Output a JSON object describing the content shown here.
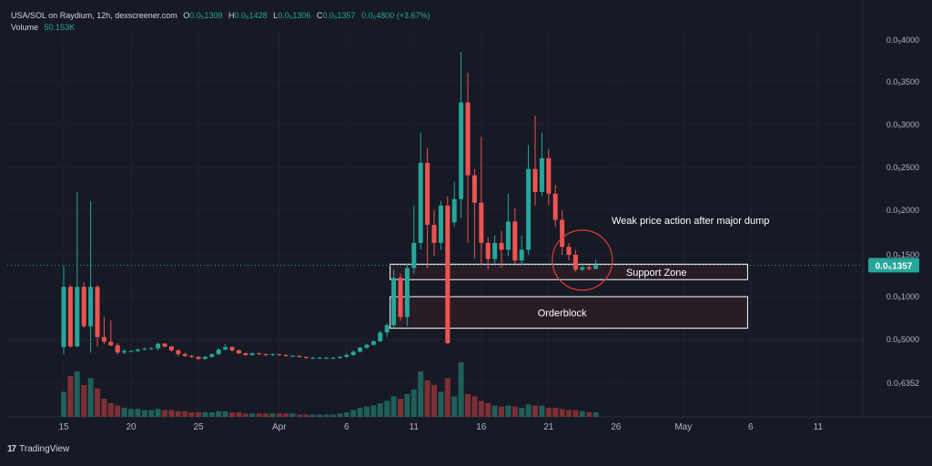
{
  "legend": {
    "symbol": "USA/SOL on Raydium, 12h, dexscreener.com",
    "o_label": "O",
    "o_value": "0.0₅1309",
    "h_label": "H",
    "h_value": "0.0₅1428",
    "l_label": "L",
    "l_value": "0.0₅1306",
    "c_label": "C",
    "c_value": "0.0₅1357",
    "change": "0.0₆4800 (+3.67%)",
    "volume_label": "Volume",
    "volume_value": "50.153K"
  },
  "footer": {
    "brand": "TradingView",
    "logo_glyph": "17"
  },
  "colors": {
    "background": "#161a25",
    "up": "#26a69a",
    "down": "#ef5350",
    "up_volume": "#1f5f59",
    "down_volume": "#7e2f35",
    "zone_fill": "#2c1f28",
    "annotation_line": "#ffffff",
    "circle": "#e53935",
    "axis_text": "#b2b5be",
    "grid": "#1e222d"
  },
  "chart_data": {
    "type": "candlestick",
    "title": "USA/SOL on Raydium, 12h, dexscreener.com",
    "price_axis": {
      "scale": "log",
      "tick_labels": [
        "0.0₅4000",
        "0.0₅3500",
        "0.0₅3000",
        "0.0₅2500",
        "0.0₅2000",
        "0.0₅1500",
        "0.0₅1000",
        "0.0₆5000",
        "0.0₇6352"
      ],
      "tick_values": [
        4e-06,
        3.5e-06,
        3e-06,
        2.5e-06,
        2e-06,
        1.5e-06,
        1e-06,
        5e-07,
        6.352e-08
      ],
      "current_price_label": "0.0₅1357",
      "current_price": 1.357e-06
    },
    "time_axis": {
      "tick_labels": [
        "15",
        "20",
        "25",
        "Apr",
        "6",
        "11",
        "16",
        "21",
        "26",
        "May",
        "6",
        "11"
      ],
      "tick_bar_index": [
        0,
        10,
        20,
        32,
        42,
        52,
        62,
        72,
        82,
        92,
        102,
        112
      ]
    },
    "candles": [
      [
        3.5e-07,
        1.1e-06,
        2.5e-07,
        1.35e-06,
        22
      ],
      [
        1.1e-06,
        3.6e-07,
        3.4e-07,
        1.12e-06,
        36
      ],
      [
        3.6e-07,
        1.1e-06,
        3.5e-07,
        2.2e-06,
        40
      ],
      [
        1.1e-06,
        6.2e-07,
        6e-07,
        1.15e-06,
        28
      ],
      [
        6.2e-07,
        1.1e-06,
        2.7e-07,
        2.1e-06,
        34
      ],
      [
        1.1e-06,
        5.2e-07,
        3.6e-07,
        1.12e-06,
        25
      ],
      [
        5.2e-07,
        4.5e-07,
        4e-07,
        7.2e-07,
        16
      ],
      [
        4.5e-07,
        3.8e-07,
        3.6e-07,
        6.8e-07,
        12
      ],
      [
        3.8e-07,
        2.7e-07,
        2.5e-07,
        4.2e-07,
        10
      ],
      [
        2.7e-07,
        2.9e-07,
        2.5e-07,
        3.2e-07,
        8
      ],
      [
        2.9e-07,
        2.9e-07,
        2.8e-07,
        3e-07,
        7
      ],
      [
        2.9e-07,
        3.1e-07,
        2.8e-07,
        3.3e-07,
        7
      ],
      [
        3.1e-07,
        3.2e-07,
        3e-07,
        3.5e-07,
        6
      ],
      [
        3.2e-07,
        3.3e-07,
        3.1e-07,
        3.5e-07,
        6
      ],
      [
        3.3e-07,
        4.1e-07,
        3e-07,
        4.3e-07,
        7
      ],
      [
        4.1e-07,
        3.6e-07,
        3.4e-07,
        4.2e-07,
        6
      ],
      [
        3.6e-07,
        3e-07,
        2.8e-07,
        3.7e-07,
        6
      ],
      [
        3e-07,
        2.5e-07,
        2.3e-07,
        3.1e-07,
        5
      ],
      [
        2.5e-07,
        2.3e-07,
        2.2e-07,
        2.7e-07,
        5
      ],
      [
        2.3e-07,
        2.2e-07,
        2.1e-07,
        2.4e-07,
        4
      ],
      [
        2.2e-07,
        2e-07,
        1.9e-07,
        2.3e-07,
        4
      ],
      [
        2e-07,
        2.2e-07,
        1.95e-07,
        2.3e-07,
        4
      ],
      [
        2.2e-07,
        2.5e-07,
        2.1e-07,
        2.6e-07,
        4
      ],
      [
        2.5e-07,
        3.1e-07,
        2.4e-07,
        3.3e-07,
        5
      ],
      [
        3.1e-07,
        3.5e-07,
        3e-07,
        4e-07,
        5
      ],
      [
        3.5e-07,
        3e-07,
        2.8e-07,
        3.6e-07,
        4
      ],
      [
        3e-07,
        2.6e-07,
        2.5e-07,
        3.1e-07,
        4
      ],
      [
        2.6e-07,
        2.4e-07,
        2.3e-07,
        2.7e-07,
        3
      ],
      [
        2.4e-07,
        2.6e-07,
        2.3e-07,
        2.7e-07,
        3
      ],
      [
        2.6e-07,
        2.5e-07,
        2.4e-07,
        2.7e-07,
        3
      ],
      [
        2.5e-07,
        2.4e-07,
        2.3e-07,
        2.6e-07,
        3
      ],
      [
        2.4e-07,
        2.5e-07,
        2.3e-07,
        2.6e-07,
        3
      ],
      [
        2.5e-07,
        2.4e-07,
        2.3e-07,
        2.5e-07,
        3
      ],
      [
        2.4e-07,
        2.3e-07,
        2.2e-07,
        2.5e-07,
        3
      ],
      [
        2.3e-07,
        2.3e-07,
        2.2e-07,
        2.4e-07,
        3
      ],
      [
        2.3e-07,
        2.2e-07,
        2.1e-07,
        2.4e-07,
        2
      ],
      [
        2.2e-07,
        2.1e-07,
        2e-07,
        2.2e-07,
        2
      ],
      [
        2.1e-07,
        2.1e-07,
        2e-07,
        2.2e-07,
        2
      ],
      [
        2.1e-07,
        2.1e-07,
        2e-07,
        2.2e-07,
        2
      ],
      [
        2.1e-07,
        2.1e-07,
        2e-07,
        2.2e-07,
        2
      ],
      [
        2.1e-07,
        2.1e-07,
        2e-07,
        2.2e-07,
        2
      ],
      [
        2.1e-07,
        2.2e-07,
        2e-07,
        2.3e-07,
        3
      ],
      [
        2.2e-07,
        2.4e-07,
        2.1e-07,
        2.6e-07,
        4
      ],
      [
        2.4e-07,
        2.8e-07,
        2.3e-07,
        3e-07,
        6
      ],
      [
        2.8e-07,
        3.4e-07,
        2.7e-07,
        3.6e-07,
        8
      ],
      [
        3.4e-07,
        3.9e-07,
        3.2e-07,
        4.1e-07,
        9
      ],
      [
        3.9e-07,
        4.6e-07,
        3.8e-07,
        4.8e-07,
        10
      ],
      [
        4.6e-07,
        5.6e-07,
        4.4e-07,
        5.8e-07,
        12
      ],
      [
        5.6e-07,
        6.3e-07,
        5.2e-07,
        6.5e-07,
        14
      ],
      [
        6.3e-07,
        1.2e-06,
        6e-07,
        1.3e-06,
        18
      ],
      [
        1.2e-06,
        7.2e-07,
        6.8e-07,
        1.25e-06,
        16
      ],
      [
        7.2e-07,
        1.32e-06,
        6.2e-07,
        1.38e-06,
        20
      ],
      [
        1.32e-06,
        1.62e-06,
        1.25e-06,
        2.05e-06,
        24
      ],
      [
        1.62e-06,
        2.55e-06,
        1.55e-06,
        2.9e-06,
        40
      ],
      [
        2.55e-06,
        1.82e-06,
        1.32e-06,
        2.72e-06,
        32
      ],
      [
        1.82e-06,
        1.62e-06,
        1.48e-06,
        2e-06,
        28
      ],
      [
        1.62e-06,
        2.05e-06,
        1.55e-06,
        2.1e-06,
        22
      ],
      [
        2.05e-06,
        4.2e-07,
        4e-07,
        2.15e-06,
        34
      ],
      [
        1.85e-06,
        2.12e-06,
        1.8e-06,
        2.32e-06,
        18
      ],
      [
        2.12e-06,
        3.25e-06,
        1.9e-06,
        3.85e-06,
        48
      ],
      [
        3.25e-06,
        2.4e-06,
        1.62e-06,
        3.6e-06,
        20
      ],
      [
        2.4e-06,
        2.08e-06,
        1.45e-06,
        2.48e-06,
        18
      ],
      [
        2.08e-06,
        1.62e-06,
        1.36e-06,
        2.85e-06,
        14
      ],
      [
        1.62e-06,
        1.44e-06,
        1.3e-06,
        1.68e-06,
        12
      ],
      [
        1.44e-06,
        1.62e-06,
        1.38e-06,
        1.7e-06,
        10
      ],
      [
        1.62e-06,
        1.55e-06,
        1.32e-06,
        1.75e-06,
        9
      ],
      [
        1.55e-06,
        1.86e-06,
        1.48e-06,
        2.18e-06,
        10
      ],
      [
        1.86e-06,
        1.42e-06,
        1.35e-06,
        2.02e-06,
        9
      ],
      [
        1.42e-06,
        1.55e-06,
        1.36e-06,
        1.7e-06,
        8
      ],
      [
        1.55e-06,
        2.48e-06,
        1.5e-06,
        2.75e-06,
        11
      ],
      [
        2.48e-06,
        2.2e-06,
        2.05e-06,
        3.1e-06,
        10
      ],
      [
        2.2e-06,
        2.6e-06,
        2.15e-06,
        2.9e-06,
        10
      ],
      [
        2.6e-06,
        2.18e-06,
        2.05e-06,
        2.7e-06,
        8
      ],
      [
        2.18e-06,
        1.88e-06,
        1.8e-06,
        2.28e-06,
        8
      ],
      [
        1.88e-06,
        1.58e-06,
        1.5e-06,
        2e-06,
        7
      ],
      [
        1.58e-06,
        1.5e-06,
        1.42e-06,
        1.62e-06,
        6
      ],
      [
        1.5e-06,
        1.3e-06,
        1.27e-06,
        1.55e-06,
        6
      ],
      [
        1.3e-06,
        1.33e-06,
        1.28e-06,
        1.37e-06,
        5
      ],
      [
        1.33e-06,
        1.31e-06,
        1.29e-06,
        1.36e-06,
        4
      ],
      [
        1.31e-06,
        1.357e-06,
        1.306e-06,
        1.428e-06,
        4
      ]
    ],
    "annotations": [
      {
        "type": "text",
        "text": "Weak price action after major dump"
      },
      {
        "type": "circle",
        "note": "around latest candles"
      },
      {
        "type": "zone",
        "text": "Support Zone",
        "price_top": 1.37e-06,
        "price_bottom": 1.18e-06,
        "bar_start": 49,
        "bar_end": 101
      },
      {
        "type": "zone",
        "text": "Orderblock",
        "price_top": 1e-06,
        "price_bottom": 6e-07,
        "bar_start": 49,
        "bar_end": 101
      }
    ]
  }
}
